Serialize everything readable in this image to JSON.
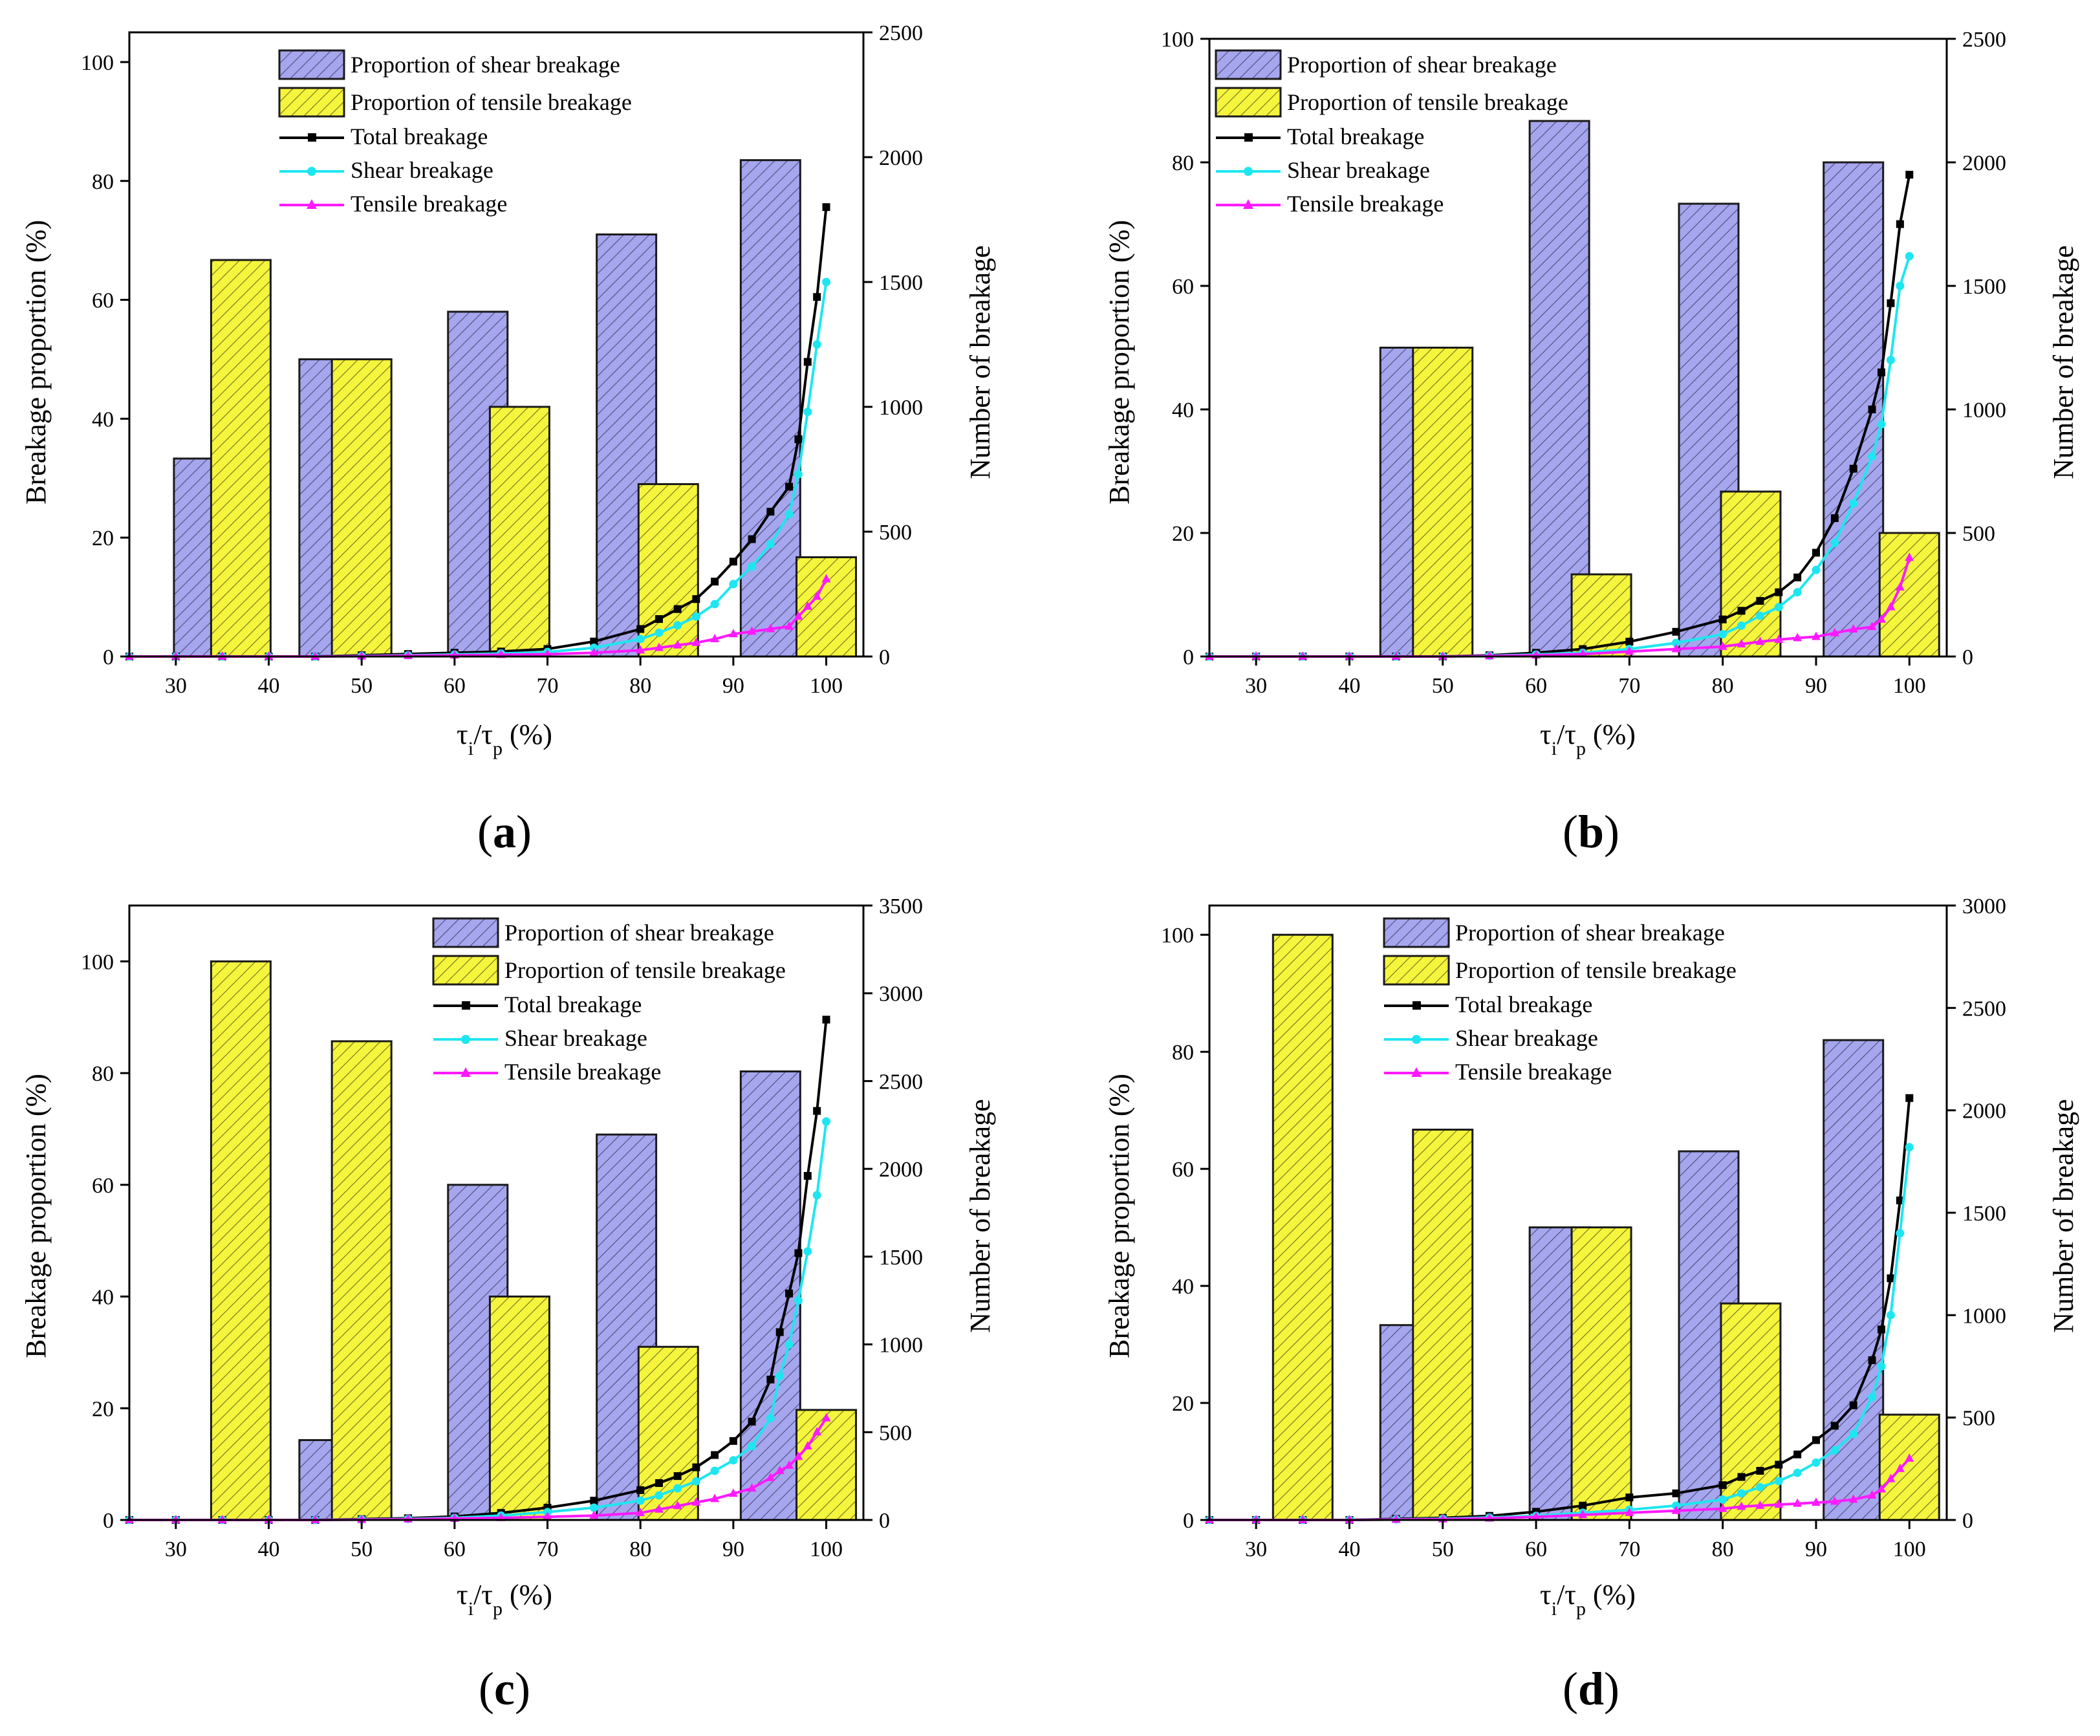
{
  "figure": {
    "colors": {
      "shear_bar": "#a6a6ee",
      "tensile_bar": "#f5f53d",
      "total_line": "#000000",
      "shear_line": "#1ee6f0",
      "tensile_line": "#ff1aff"
    },
    "legend": {
      "shear_bar": "Proportion of shear breakage",
      "tensile_bar": "Proportion of tensile breakage",
      "total": "Total breakage",
      "shear": "Shear breakage",
      "tensile": "Tensile breakage"
    },
    "ylabel_left": "Breakage proportion (%)",
    "ylabel_right": "Number of breakage",
    "xlabel": {
      "tau": "τ",
      "i": "i",
      "slash": "/",
      "p": "p",
      "unit": " (%)"
    }
  },
  "chart_data": [
    {
      "type": "bar",
      "panel": "a",
      "label": {
        "open": "(",
        "letter": "a",
        "close": ")"
      },
      "categories": [
        "30",
        "40",
        "50",
        "60",
        "70",
        "80",
        "90",
        "100"
      ],
      "xlim": [
        25,
        104
      ],
      "ylim": [
        0,
        105
      ],
      "y2lim": [
        0,
        2500
      ],
      "yticks": [
        "0",
        "20",
        "40",
        "60",
        "80",
        "100"
      ],
      "y2ticks": [
        "0",
        "500",
        "1000",
        "1500",
        "2000",
        "2500"
      ],
      "bars": [
        {
          "x": 33,
          "series": "shear",
          "value": 33.3
        },
        {
          "x": 37,
          "series": "tensile",
          "value": 66.7
        },
        {
          "x": 46.5,
          "series": "shear",
          "value": 50
        },
        {
          "x": 50,
          "series": "tensile",
          "value": 50
        },
        {
          "x": 62.5,
          "series": "shear",
          "value": 58
        },
        {
          "x": 67,
          "series": "tensile",
          "value": 42
        },
        {
          "x": 78.5,
          "series": "shear",
          "value": 71
        },
        {
          "x": 83,
          "series": "tensile",
          "value": 29
        },
        {
          "x": 94,
          "series": "shear",
          "value": 83.5
        },
        {
          "x": 100,
          "series": "tensile",
          "value": 16.7
        }
      ],
      "lines": {
        "x": [
          25,
          30,
          35,
          40,
          45,
          50,
          55,
          60,
          65,
          70,
          75,
          80,
          82,
          84,
          86,
          88,
          90,
          92,
          94,
          96,
          97,
          98,
          99,
          100
        ],
        "total": [
          0,
          0,
          0,
          0,
          0,
          5,
          10,
          15,
          20,
          30,
          60,
          110,
          150,
          190,
          230,
          300,
          380,
          470,
          580,
          680,
          870,
          1180,
          1440,
          1800
        ],
        "shear": [
          0,
          0,
          0,
          0,
          0,
          2,
          5,
          8,
          12,
          18,
          35,
          70,
          95,
          125,
          160,
          210,
          290,
          360,
          450,
          570,
          730,
          980,
          1250,
          1500
        ],
        "tensile": [
          0,
          0,
          0,
          0,
          0,
          1,
          3,
          5,
          7,
          9,
          15,
          25,
          35,
          45,
          55,
          70,
          90,
          100,
          110,
          120,
          160,
          200,
          240,
          310
        ]
      }
    },
    {
      "type": "bar",
      "panel": "b",
      "label": {
        "open": "(",
        "letter": "b",
        "close": ")"
      },
      "categories": [
        "30",
        "40",
        "50",
        "60",
        "70",
        "80",
        "90",
        "100"
      ],
      "xlim": [
        25,
        104
      ],
      "ylim": [
        0,
        100
      ],
      "y2lim": [
        0,
        2500
      ],
      "yticks": [
        "0",
        "20",
        "40",
        "60",
        "80",
        "100"
      ],
      "y2ticks": [
        "0",
        "500",
        "1000",
        "1500",
        "2000",
        "2500"
      ],
      "bars": [
        {
          "x": 46.5,
          "series": "shear",
          "value": 50
        },
        {
          "x": 50,
          "series": "tensile",
          "value": 50
        },
        {
          "x": 62.5,
          "series": "shear",
          "value": 86.7
        },
        {
          "x": 67,
          "series": "tensile",
          "value": 13.3
        },
        {
          "x": 78.5,
          "series": "shear",
          "value": 73.3
        },
        {
          "x": 83,
          "series": "tensile",
          "value": 26.7
        },
        {
          "x": 94,
          "series": "shear",
          "value": 80
        },
        {
          "x": 100,
          "series": "tensile",
          "value": 20
        }
      ],
      "lines": {
        "x": [
          25,
          30,
          35,
          40,
          45,
          50,
          55,
          60,
          65,
          70,
          75,
          80,
          82,
          84,
          86,
          88,
          90,
          92,
          94,
          96,
          97,
          98,
          99,
          100
        ],
        "total": [
          0,
          0,
          0,
          0,
          0,
          0,
          5,
          15,
          30,
          60,
          100,
          150,
          185,
          225,
          260,
          320,
          420,
          560,
          760,
          1000,
          1150,
          1430,
          1750,
          1950
        ],
        "shear": [
          0,
          0,
          0,
          0,
          0,
          0,
          3,
          8,
          15,
          30,
          55,
          90,
          125,
          165,
          200,
          260,
          350,
          460,
          620,
          810,
          940,
          1200,
          1500,
          1620
        ],
        "tensile": [
          0,
          0,
          0,
          0,
          0,
          0,
          2,
          5,
          10,
          20,
          30,
          40,
          50,
          60,
          68,
          75,
          80,
          95,
          110,
          120,
          150,
          200,
          280,
          400
        ]
      }
    },
    {
      "type": "bar",
      "panel": "c",
      "label": {
        "open": "(",
        "letter": "c",
        "close": ")"
      },
      "categories": [
        "30",
        "40",
        "50",
        "60",
        "70",
        "80",
        "90",
        "100"
      ],
      "xlim": [
        25,
        104
      ],
      "ylim": [
        0,
        110
      ],
      "y2lim": [
        0,
        3500
      ],
      "yticks": [
        "0",
        "20",
        "40",
        "60",
        "80",
        "100"
      ],
      "y2ticks": [
        "0",
        "500",
        "1000",
        "1500",
        "2000",
        "2500",
        "3000",
        "3500"
      ],
      "bars": [
        {
          "x": 37,
          "series": "tensile",
          "value": 100
        },
        {
          "x": 46.5,
          "series": "shear",
          "value": 14.3
        },
        {
          "x": 50,
          "series": "tensile",
          "value": 85.7
        },
        {
          "x": 62.5,
          "series": "shear",
          "value": 60
        },
        {
          "x": 67,
          "series": "tensile",
          "value": 40
        },
        {
          "x": 78.5,
          "series": "shear",
          "value": 69
        },
        {
          "x": 83,
          "series": "tensile",
          "value": 31
        },
        {
          "x": 94,
          "series": "shear",
          "value": 80.3
        },
        {
          "x": 100,
          "series": "tensile",
          "value": 19.7
        }
      ],
      "lines": {
        "x": [
          25,
          30,
          35,
          40,
          45,
          50,
          55,
          60,
          65,
          70,
          75,
          80,
          82,
          84,
          86,
          88,
          90,
          92,
          94,
          95,
          96,
          97,
          98,
          99,
          100
        ],
        "total": [
          0,
          0,
          0,
          0,
          0,
          5,
          10,
          20,
          40,
          70,
          110,
          170,
          210,
          250,
          300,
          370,
          450,
          560,
          800,
          1070,
          1290,
          1520,
          1960,
          2330,
          2850
        ],
        "shear": [
          0,
          0,
          0,
          0,
          0,
          3,
          6,
          12,
          25,
          45,
          70,
          110,
          140,
          180,
          220,
          280,
          340,
          420,
          580,
          820,
          1000,
          1250,
          1530,
          1850,
          2270
        ],
        "tensile": [
          0,
          0,
          0,
          0,
          0,
          2,
          4,
          8,
          12,
          18,
          25,
          40,
          60,
          80,
          100,
          120,
          150,
          180,
          240,
          280,
          310,
          360,
          420,
          500,
          580
        ]
      }
    },
    {
      "type": "bar",
      "panel": "d",
      "label": {
        "open": "(",
        "letter": "d",
        "close": ")"
      },
      "categories": [
        "30",
        "40",
        "50",
        "60",
        "70",
        "80",
        "90",
        "100"
      ],
      "xlim": [
        25,
        104
      ],
      "ylim": [
        0,
        105
      ],
      "y2lim": [
        0,
        3000
      ],
      "yticks": [
        "0",
        "20",
        "40",
        "60",
        "80",
        "100"
      ],
      "y2ticks": [
        "0",
        "500",
        "1000",
        "1500",
        "2000",
        "2500",
        "3000"
      ],
      "bars": [
        {
          "x": 35,
          "series": "tensile",
          "value": 100
        },
        {
          "x": 46.5,
          "series": "shear",
          "value": 33.3
        },
        {
          "x": 50,
          "series": "tensile",
          "value": 66.7
        },
        {
          "x": 62.5,
          "series": "shear",
          "value": 50
        },
        {
          "x": 67,
          "series": "tensile",
          "value": 50
        },
        {
          "x": 78.5,
          "series": "shear",
          "value": 63
        },
        {
          "x": 83,
          "series": "tensile",
          "value": 37
        },
        {
          "x": 94,
          "series": "shear",
          "value": 82
        },
        {
          "x": 100,
          "series": "tensile",
          "value": 18
        }
      ],
      "lines": {
        "x": [
          25,
          30,
          35,
          40,
          45,
          50,
          55,
          60,
          65,
          70,
          75,
          80,
          82,
          84,
          86,
          88,
          90,
          92,
          94,
          96,
          97,
          98,
          99,
          100
        ],
        "total": [
          0,
          0,
          0,
          0,
          5,
          10,
          20,
          40,
          70,
          110,
          130,
          170,
          210,
          240,
          270,
          320,
          390,
          460,
          560,
          780,
          930,
          1180,
          1560,
          2060
        ],
        "shear": [
          0,
          0,
          0,
          0,
          3,
          6,
          12,
          20,
          35,
          50,
          70,
          100,
          130,
          160,
          190,
          230,
          280,
          340,
          420,
          600,
          750,
          1000,
          1400,
          1820
        ],
        "tensile": [
          0,
          0,
          0,
          0,
          2,
          4,
          8,
          15,
          25,
          35,
          45,
          55,
          65,
          70,
          75,
          80,
          85,
          90,
          100,
          120,
          150,
          200,
          250,
          300
        ]
      }
    }
  ]
}
